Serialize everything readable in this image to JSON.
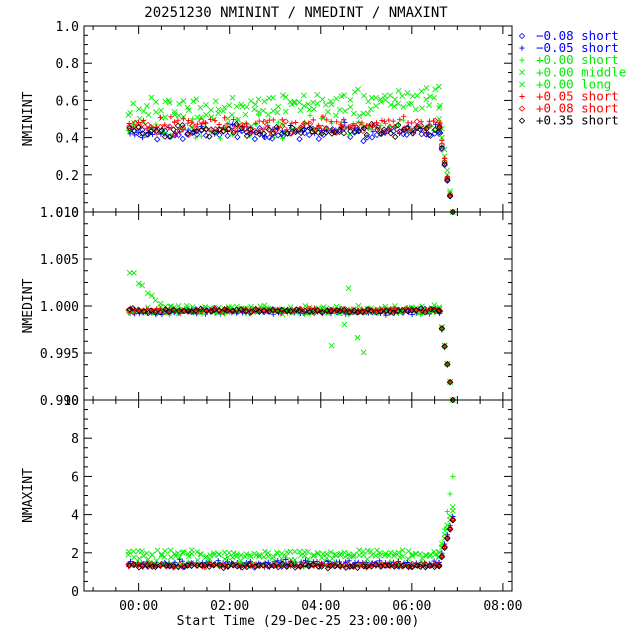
{
  "chart_data": [
    {
      "type": "scatter",
      "title": "20251230 NMININT / NMEDINT / NMAXINT",
      "ylabel": "NMININT",
      "ylim": [
        0,
        1.0
      ],
      "yticks": [
        "0.0",
        "0.2",
        "0.4",
        "0.6",
        "0.8",
        "1.0"
      ],
      "yticks_values": [
        0.0,
        0.2,
        0.4,
        0.6,
        0.8,
        1.0
      ],
      "series_profile": [
        {
          "name": "-0.08 short",
          "base": 0.42,
          "spread": 0.03
        },
        {
          "name": "-0.05 short",
          "base": 0.44,
          "spread": 0.03
        },
        {
          "name": "+0.00 short",
          "base": 0.46,
          "spread": 0.05
        },
        {
          "name": "+0.00 middle",
          "base": 0.56,
          "spread": 0.04
        },
        {
          "name": "+0.00 long",
          "base": 0.5,
          "spread": 0.05
        },
        {
          "name": "+0.05 short",
          "base": 0.48,
          "spread": 0.03
        },
        {
          "name": "+0.08 short",
          "base": 0.45,
          "spread": 0.03
        },
        {
          "name": "+0.35 short",
          "base": 0.43,
          "spread": 0.03
        }
      ]
    },
    {
      "type": "scatter",
      "ylabel": "NMEDINT",
      "ylim": [
        0.99,
        1.01
      ],
      "yticks": [
        "0.990",
        "0.995",
        "1.000",
        "1.005",
        "1.010"
      ],
      "yticks_values": [
        0.99,
        0.995,
        1.0,
        1.005,
        1.01
      ],
      "series_profile": [
        {
          "name": "-0.08 short",
          "base": 0.9995,
          "spread": 0.0002
        },
        {
          "name": "-0.05 short",
          "base": 0.9993,
          "spread": 0.0002
        },
        {
          "name": "+0.00 short",
          "base": 0.9994,
          "spread": 0.0003
        },
        {
          "name": "+0.00 middle",
          "base": 0.9997,
          "spread": 0.0003
        },
        {
          "name": "+0.00 long",
          "base": 0.9996,
          "spread": 0.0004
        },
        {
          "name": "+0.05 short",
          "base": 0.9996,
          "spread": 0.0002
        },
        {
          "name": "+0.08 short",
          "base": 0.9995,
          "spread": 0.0002
        },
        {
          "name": "+0.35 short",
          "base": 0.9995,
          "spread": 0.0002
        }
      ]
    },
    {
      "type": "scatter",
      "ylabel": "NMAXINT",
      "ylim": [
        0,
        10
      ],
      "yticks": [
        "0",
        "2",
        "4",
        "6",
        "8",
        "10"
      ],
      "yticks_values": [
        0,
        2,
        4,
        6,
        8,
        10
      ],
      "series_profile": [
        {
          "name": "-0.08 short",
          "base": 1.35,
          "spread": 0.08
        },
        {
          "name": "-0.05 short",
          "base": 1.5,
          "spread": 0.1
        },
        {
          "name": "+0.00 short",
          "base": 1.4,
          "spread": 0.1
        },
        {
          "name": "+0.00 middle",
          "base": 2.0,
          "spread": 0.15
        },
        {
          "name": "+0.00 long",
          "base": 1.8,
          "spread": 0.2
        },
        {
          "name": "+0.05 short",
          "base": 1.3,
          "spread": 0.08
        },
        {
          "name": "+0.08 short",
          "base": 1.35,
          "spread": 0.08
        },
        {
          "name": "+0.35 short",
          "base": 1.3,
          "spread": 0.08
        }
      ]
    }
  ],
  "xaxis": {
    "label": "Start Time (29-Dec-25 23:00:00)",
    "ticks": [
      "00:00",
      "02:00",
      "04:00",
      "06:00",
      "08:00"
    ],
    "tick_hours": [
      1,
      3,
      5,
      7,
      9
    ],
    "range_hours": [
      -0.2,
      9.2
    ],
    "data_start_hours": 0.8,
    "data_drop_hours": 7.6,
    "data_end_hours": 7.9
  },
  "legend": {
    "placement": "right",
    "entries": [
      {
        "symbol": "◇",
        "label": "−0.08 short",
        "color": "#0000ff"
      },
      {
        "symbol": "+",
        "label": "−0.05 short",
        "color": "#0000ff"
      },
      {
        "symbol": "+",
        "label": "+0.00 short",
        "color": "#00ee00"
      },
      {
        "symbol": "×",
        "label": "+0.00 middle",
        "color": "#00ee00"
      },
      {
        "symbol": "×",
        "label": "+0.00 long",
        "color": "#00ee00"
      },
      {
        "symbol": "+",
        "label": "+0.05 short",
        "color": "#ff0000"
      },
      {
        "symbol": "◇",
        "label": "+0.08 short",
        "color": "#ff0000"
      },
      {
        "symbol": "◇",
        "label": "+0.35 short",
        "color": "#000000"
      }
    ]
  }
}
